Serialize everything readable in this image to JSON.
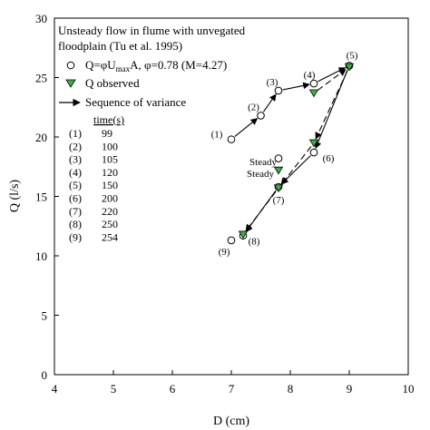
{
  "chart_data": {
    "type": "scatter",
    "xlabel": "D  (cm)",
    "ylabel": "Q  (l/s)",
    "xlim": [
      4,
      10
    ],
    "ylim": [
      0,
      30
    ],
    "x_ticks": [
      4,
      5,
      6,
      7,
      8,
      9,
      10
    ],
    "y_ticks": [
      0,
      5,
      10,
      15,
      20,
      25,
      30
    ],
    "grid": false,
    "legend": {
      "placement": "top-left",
      "title_lines": [
        "Unsteady flow in flume with unvegated",
        "floodplain (Tu et al. 1995)"
      ],
      "entries": [
        {
          "symbol": "open-circle",
          "label": "Q=φU",
          "sub": "max",
          "label_rest": "A, φ=0.78  (M=4.27)"
        },
        {
          "symbol": "green-triangle",
          "label": "Q observed"
        },
        {
          "symbol": "arrow",
          "label": "Sequence of variance"
        }
      ]
    },
    "time_table": {
      "header": "time(s)",
      "rows": [
        {
          "id": "(1)",
          "time": "99"
        },
        {
          "id": "(2)",
          "time": "100"
        },
        {
          "id": "(3)",
          "time": "105"
        },
        {
          "id": "(4)",
          "time": "120"
        },
        {
          "id": "(5)",
          "time": "150"
        },
        {
          "id": "(6)",
          "time": "200"
        },
        {
          "id": "(7)",
          "time": "220"
        },
        {
          "id": "(8)",
          "time": "250"
        },
        {
          "id": "(9)",
          "time": "254"
        }
      ]
    },
    "series": [
      {
        "name": "Q=φUmaxA, φ=0.78  (M=4.27)",
        "marker": "open-circle",
        "points": [
          {
            "label": "(1)",
            "x": 7.0,
            "y": 19.8
          },
          {
            "label": "(2)",
            "x": 7.5,
            "y": 21.8
          },
          {
            "label": "(3)",
            "x": 7.8,
            "y": 23.9
          },
          {
            "label": "(4)",
            "x": 8.4,
            "y": 24.5
          },
          {
            "label": "(5)",
            "x": 9.0,
            "y": 26.0
          },
          {
            "label": "(6)",
            "x": 8.4,
            "y": 18.7
          },
          {
            "label": "(7)",
            "x": 7.8,
            "y": 15.8
          },
          {
            "label": "(8)",
            "x": 7.2,
            "y": 11.7
          },
          {
            "label": "(9)",
            "x": 7.0,
            "y": 11.3
          },
          {
            "label": "Steady",
            "x": 7.8,
            "y": 18.2
          }
        ]
      },
      {
        "name": "Q observed",
        "marker": "green-triangle",
        "points": [
          {
            "x": 9.0,
            "y": 25.9
          },
          {
            "x": 8.4,
            "y": 23.7
          },
          {
            "x": 8.4,
            "y": 19.5
          },
          {
            "x": 7.8,
            "y": 15.7
          },
          {
            "x": 7.2,
            "y": 11.8
          },
          {
            "x": 7.8,
            "y": 17.2
          }
        ]
      }
    ],
    "arrows": [
      {
        "style": "solid",
        "from": [
          7.0,
          19.8
        ],
        "to": [
          7.5,
          21.8
        ]
      },
      {
        "style": "solid",
        "from": [
          7.5,
          21.8
        ],
        "to": [
          7.8,
          23.9
        ]
      },
      {
        "style": "solid",
        "from": [
          7.8,
          23.9
        ],
        "to": [
          8.4,
          24.5
        ]
      },
      {
        "style": "solid",
        "from": [
          8.4,
          24.5
        ],
        "to": [
          9.0,
          26.0
        ]
      },
      {
        "style": "solid",
        "from": [
          9.0,
          26.0
        ],
        "to": [
          8.4,
          18.7
        ]
      },
      {
        "style": "solid",
        "from": [
          8.4,
          18.7
        ],
        "to": [
          7.8,
          15.8
        ]
      },
      {
        "style": "solid",
        "from": [
          7.8,
          15.8
        ],
        "to": [
          7.2,
          11.7
        ]
      },
      {
        "style": "dashed",
        "from": [
          8.4,
          23.7
        ],
        "to": [
          9.0,
          25.9
        ]
      },
      {
        "style": "dashed",
        "from": [
          9.0,
          25.9
        ],
        "to": [
          8.4,
          19.5
        ]
      },
      {
        "style": "dashed",
        "from": [
          8.4,
          19.5
        ],
        "to": [
          7.8,
          15.7
        ]
      },
      {
        "style": "dashed",
        "from": [
          7.8,
          15.7
        ],
        "to": [
          7.2,
          11.8
        ]
      }
    ],
    "annotations": [
      {
        "text": "Steady",
        "x": 7.8,
        "y": 18.2
      },
      {
        "text": "Steady",
        "x": 7.8,
        "y": 17.2
      }
    ],
    "colors": {
      "triangle_fill": "#3cb043",
      "line": "#000000"
    }
  }
}
